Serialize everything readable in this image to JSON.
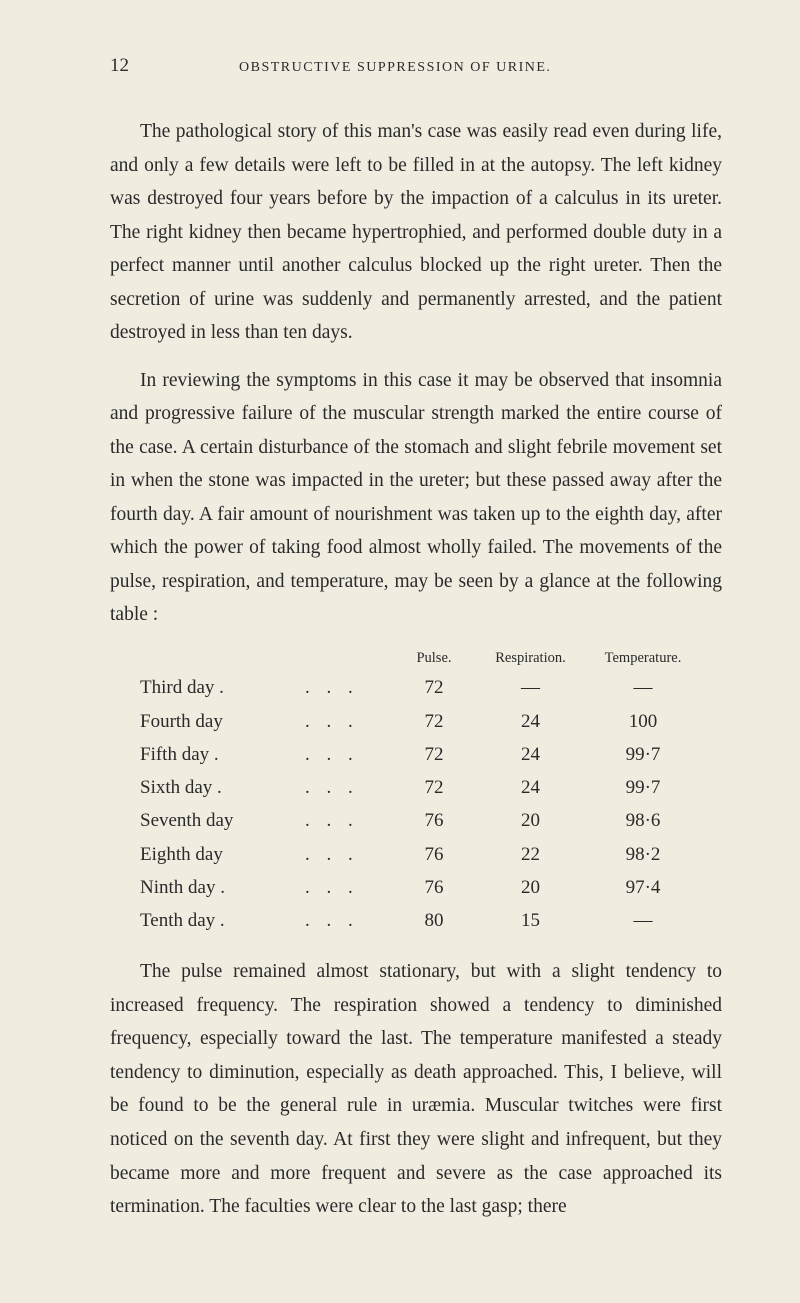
{
  "page_number": "12",
  "running_head": "OBSTRUCTIVE SUPPRESSION OF URINE.",
  "para1": "The pathological story of this man's case was easily read even during life, and only a few details were left to be filled in at the autopsy. The left kidney was destroyed four years before by the impaction of a calculus in its ureter. The right kidney then became hypertrophied, and performed double duty in a perfect manner until another calculus blocked up the right ureter. Then the secretion of urine was suddenly and permanently arrested, and the patient destroyed in less than ten days.",
  "para2": "In reviewing the symptoms in this case it may be observed that insomnia and progressive failure of the muscular strength marked the entire course of the case. A certain disturbance of the stomach and slight febrile movement set in when the stone was impacted in the ureter; but these passed away after the fourth day. A fair amount of nourishment was taken up to the eighth day, after which the power of taking food almost wholly failed. The movements of the pulse, respiration, and temperature, may be seen by a glance at the following table :",
  "para3": "The pulse remained almost stationary, but with a slight tendency to increased frequency. The respiration showed a tendency to diminished frequency, especially toward the last. The temperature manifested a steady tendency to diminution, especially as death approached. This, I believe, will be found to be the general rule in uræmia. Muscular twitches were first noticed on the seventh day. At first they were slight and infrequent, but they became more and more frequent and severe as the case approached its termination. The faculties were clear to the last gasp; there",
  "table": {
    "headers": {
      "pulse": "Pulse.",
      "resp": "Respiration.",
      "temp": "Temperature."
    },
    "rows": [
      {
        "label": "Third day .",
        "dots": ". . .",
        "pulse": "72",
        "resp": "—",
        "temp": "—"
      },
      {
        "label": "Fourth day",
        "dots": ". . .",
        "pulse": "72",
        "resp": "24",
        "temp": "100"
      },
      {
        "label": "Fifth day .",
        "dots": ". . .",
        "pulse": "72",
        "resp": "24",
        "temp": "99·7"
      },
      {
        "label": "Sixth day .",
        "dots": ". . .",
        "pulse": "72",
        "resp": "24",
        "temp": "99·7"
      },
      {
        "label": "Seventh day",
        "dots": ". . .",
        "pulse": "76",
        "resp": "20",
        "temp": "98·6"
      },
      {
        "label": "Eighth day",
        "dots": ". . .",
        "pulse": "76",
        "resp": "22",
        "temp": "98·2"
      },
      {
        "label": "Ninth day .",
        "dots": ". . .",
        "pulse": "76",
        "resp": "20",
        "temp": "97·4"
      },
      {
        "label": "Tenth day .",
        "dots": ". . .",
        "pulse": "80",
        "resp": "15",
        "temp": "—"
      }
    ]
  }
}
